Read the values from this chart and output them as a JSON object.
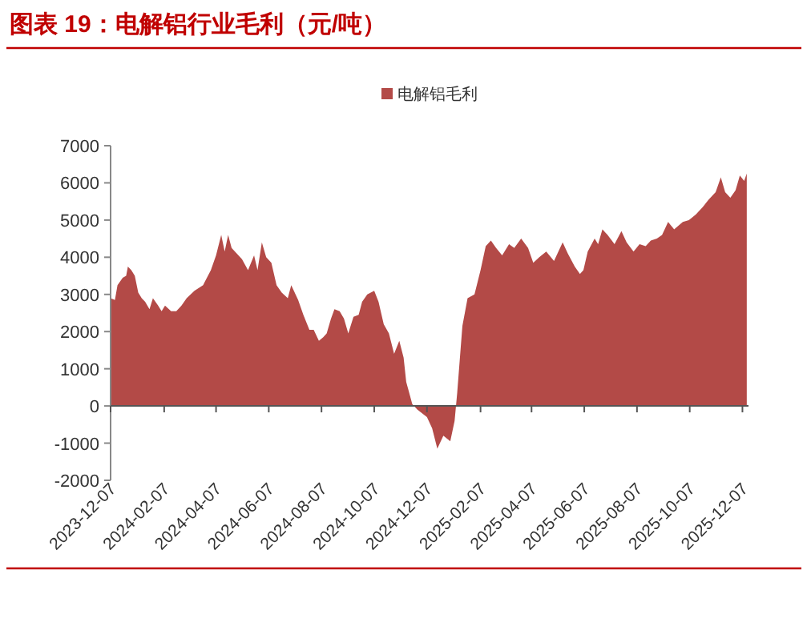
{
  "chart_data": {
    "type": "area",
    "title": "图表 19：电解铝行业毛利（元/吨）",
    "x": [
      "2023-12-07",
      "2023-12-12",
      "2023-12-15",
      "2023-12-21",
      "2023-12-25",
      "2023-12-27",
      "2023-12-31",
      "2024-01-04",
      "2024-01-08",
      "2024-01-12",
      "2024-01-16",
      "2024-01-21",
      "2024-01-25",
      "2024-01-31",
      "2024-02-04",
      "2024-02-08",
      "2024-02-15",
      "2024-02-21",
      "2024-02-27",
      "2024-03-04",
      "2024-03-13",
      "2024-03-23",
      "2024-04-01",
      "2024-04-07",
      "2024-04-13",
      "2024-04-17",
      "2024-04-21",
      "2024-04-25",
      "2024-05-01",
      "2024-05-07",
      "2024-05-14",
      "2024-05-21",
      "2024-05-25",
      "2024-05-30",
      "2024-06-04",
      "2024-06-10",
      "2024-06-16",
      "2024-06-22",
      "2024-06-29",
      "2024-07-03",
      "2024-07-11",
      "2024-07-17",
      "2024-07-24",
      "2024-07-29",
      "2024-08-04",
      "2024-08-09",
      "2024-08-13",
      "2024-08-18",
      "2024-08-22",
      "2024-08-28",
      "2024-09-02",
      "2024-09-07",
      "2024-09-13",
      "2024-09-19",
      "2024-09-23",
      "2024-09-29",
      "2024-10-07",
      "2024-10-12",
      "2024-10-18",
      "2024-10-24",
      "2024-10-30",
      "2024-11-05",
      "2024-11-10",
      "2024-11-13",
      "2024-11-20",
      "2024-11-26",
      "2024-12-07",
      "2024-12-13",
      "2024-12-19",
      "2024-12-26",
      "2025-01-03",
      "2025-01-08",
      "2025-01-11",
      "2025-01-17",
      "2025-01-23",
      "2025-01-31",
      "2025-02-07",
      "2025-02-13",
      "2025-02-19",
      "2025-02-25",
      "2025-03-04",
      "2025-03-12",
      "2025-03-18",
      "2025-03-26",
      "2025-04-03",
      "2025-04-09",
      "2025-04-16",
      "2025-04-24",
      "2025-05-03",
      "2025-05-13",
      "2025-05-19",
      "2025-05-27",
      "2025-06-02",
      "2025-06-06",
      "2025-06-11",
      "2025-06-19",
      "2025-06-23",
      "2025-06-28",
      "2025-07-04",
      "2025-07-12",
      "2025-07-20",
      "2025-07-26",
      "2025-08-03",
      "2025-08-10",
      "2025-08-17",
      "2025-08-23",
      "2025-08-30",
      "2025-09-05",
      "2025-09-12",
      "2025-09-19",
      "2025-09-29",
      "2025-10-06",
      "2025-10-14",
      "2025-10-22",
      "2025-10-29",
      "2025-11-06",
      "2025-11-12",
      "2025-11-17",
      "2025-11-23",
      "2025-11-29",
      "2025-12-04",
      "2025-12-09",
      "2025-12-12"
    ],
    "series": [
      {
        "name": "电解铝毛利",
        "color": "#b34a47",
        "values": [
          2900,
          2850,
          3250,
          3450,
          3500,
          3750,
          3650,
          3500,
          3050,
          2900,
          2800,
          2600,
          2900,
          2700,
          2550,
          2700,
          2550,
          2550,
          2700,
          2900,
          3100,
          3250,
          3650,
          4050,
          4600,
          4150,
          4600,
          4250,
          4100,
          3950,
          3650,
          4050,
          3650,
          4400,
          4000,
          3850,
          3250,
          3050,
          2900,
          3250,
          2850,
          2450,
          2050,
          2050,
          1750,
          1850,
          1950,
          2350,
          2600,
          2550,
          2350,
          1950,
          2400,
          2450,
          2800,
          3000,
          3100,
          2800,
          2200,
          1950,
          1400,
          1750,
          1300,
          650,
          50,
          -100,
          -300,
          -600,
          -1150,
          -800,
          -950,
          -400,
          350,
          2150,
          2900,
          3000,
          3650,
          4300,
          4450,
          4250,
          4050,
          4350,
          4250,
          4500,
          4250,
          3850,
          4000,
          4150,
          3900,
          4400,
          4100,
          3750,
          3550,
          3650,
          4150,
          4500,
          4350,
          4750,
          4600,
          4350,
          4700,
          4400,
          4150,
          4350,
          4300,
          4450,
          4500,
          4600,
          4950,
          4750,
          4950,
          5000,
          5150,
          5350,
          5550,
          5750,
          6150,
          5750,
          5600,
          5800,
          6200,
          6050,
          6250
        ]
      }
    ],
    "xlim": [
      "2023-12-07",
      "2025-12-14"
    ],
    "xticks": [
      "2023-12-07",
      "2024-02-07",
      "2024-04-07",
      "2024-06-07",
      "2024-08-07",
      "2024-10-07",
      "2024-12-07",
      "2025-02-07",
      "2025-04-07",
      "2025-06-07",
      "2025-08-07",
      "2025-10-07",
      "2025-12-07"
    ],
    "ylim": [
      -2000,
      7000
    ],
    "yticks": [
      -2000,
      -1000,
      0,
      1000,
      2000,
      3000,
      4000,
      5000,
      6000,
      7000
    ],
    "legend": "top"
  }
}
